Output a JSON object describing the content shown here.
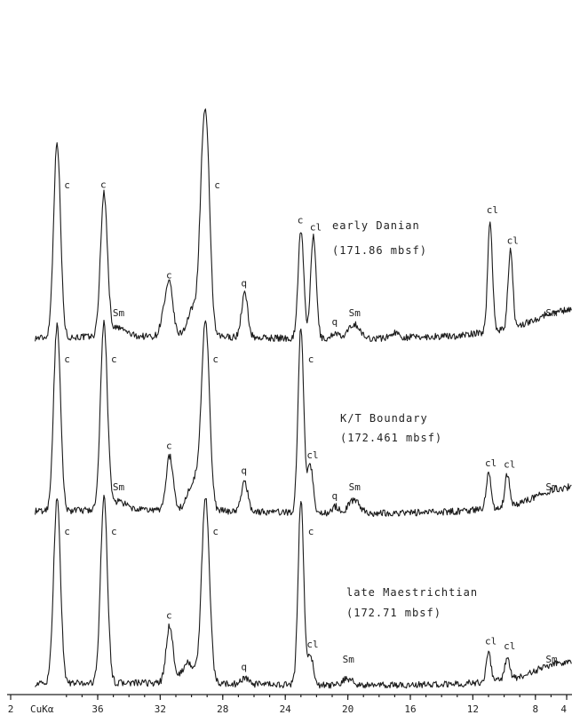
{
  "chart_data": {
    "type": "line",
    "title": "",
    "xlabel": "",
    "ylabel": "",
    "x_axis": {
      "range_deg_2theta": [
        40,
        2
      ],
      "reversed": true,
      "radiation_label": "CuKα",
      "ticks": [
        {
          "value": 2,
          "label": "2"
        },
        {
          "value": 36,
          "label": "36"
        },
        {
          "value": 32,
          "label": "32"
        },
        {
          "value": 28,
          "label": "28"
        },
        {
          "value": 24,
          "label": "24"
        },
        {
          "value": 20,
          "label": "20"
        },
        {
          "value": 16,
          "label": "16"
        },
        {
          "value": 12,
          "label": "12"
        },
        {
          "value": 8,
          "label": "8"
        },
        {
          "value": 4,
          "label": "4"
        }
      ]
    },
    "series": [
      {
        "name": "early Danian",
        "depth": "(171.86 mbsf)",
        "baseline": 0.1,
        "background": [
          [
            40,
            0.04
          ],
          [
            36,
            0.08
          ],
          [
            30,
            0.1
          ],
          [
            26,
            0.05
          ],
          [
            20,
            0.0
          ],
          [
            17,
            0.05
          ],
          [
            13,
            0.1
          ],
          [
            10,
            0.28
          ],
          [
            8,
            0.45
          ],
          [
            6,
            0.72
          ],
          [
            4.3,
            1.25
          ],
          [
            3.0,
            1.9
          ]
        ],
        "peaks": [
          {
            "x": 38.6,
            "h": 5.8,
            "w": 0.22,
            "label": "c"
          },
          {
            "x": 35.6,
            "h": 4.2,
            "w": 0.22,
            "label": "c"
          },
          {
            "x": 34.7,
            "h": 0.25,
            "w": 0.5,
            "label": "Sm"
          },
          {
            "x": 31.8,
            "h": 0.55,
            "w": 0.2
          },
          {
            "x": 31.4,
            "h": 1.5,
            "w": 0.22,
            "label": "c"
          },
          {
            "x": 29.8,
            "h": 0.9,
            "w": 0.4
          },
          {
            "x": 29.3,
            "h": 3.5,
            "w": 0.2
          },
          {
            "x": 29.0,
            "h": 4.8,
            "w": 0.22,
            "label": "c"
          },
          {
            "x": 26.6,
            "h": 1.3,
            "w": 0.2,
            "label": "q"
          },
          {
            "x": 23.0,
            "h": 3.2,
            "w": 0.18,
            "label": "c"
          },
          {
            "x": 22.2,
            "h": 3.0,
            "w": 0.18,
            "label": "cl"
          },
          {
            "x": 20.8,
            "h": 0.2,
            "w": 0.2,
            "label": "q"
          },
          {
            "x": 19.6,
            "h": 0.45,
            "w": 0.35,
            "label": "Sm"
          },
          {
            "x": 17.0,
            "h": 0.15,
            "w": 0.25
          },
          {
            "x": 10.9,
            "h": 3.3,
            "w": 0.15,
            "label": "cl"
          },
          {
            "x": 9.6,
            "h": 2.3,
            "w": 0.15,
            "label": "cl"
          },
          {
            "x": 7.0,
            "h": 0.2,
            "w": 1.2,
            "label": "Sm"
          }
        ]
      },
      {
        "name": "K/T Boundary",
        "depth": "(172.461 mbsf)",
        "baseline": 0.1,
        "background": [
          [
            40,
            0.06
          ],
          [
            36,
            0.1
          ],
          [
            30,
            0.1
          ],
          [
            26,
            0.05
          ],
          [
            20,
            0.0
          ],
          [
            16,
            0.02
          ],
          [
            13,
            0.06
          ],
          [
            10,
            0.18
          ],
          [
            8,
            0.35
          ],
          [
            6,
            0.62
          ],
          [
            4.3,
            1.15
          ],
          [
            3.0,
            1.75
          ]
        ],
        "peaks": [
          {
            "x": 38.6,
            "h": 5.5,
            "w": 0.22,
            "label": "c"
          },
          {
            "x": 35.6,
            "h": 5.5,
            "w": 0.22,
            "label": "c"
          },
          {
            "x": 34.7,
            "h": 0.25,
            "w": 0.5,
            "label": "Sm"
          },
          {
            "x": 31.4,
            "h": 1.6,
            "w": 0.22,
            "label": "c"
          },
          {
            "x": 29.8,
            "h": 0.9,
            "w": 0.4
          },
          {
            "x": 29.1,
            "h": 5.5,
            "w": 0.25,
            "label": "c"
          },
          {
            "x": 26.6,
            "h": 0.9,
            "w": 0.2,
            "label": "q"
          },
          {
            "x": 23.0,
            "h": 5.5,
            "w": 0.18,
            "label": "c"
          },
          {
            "x": 22.4,
            "h": 1.4,
            "w": 0.18,
            "label": "cl"
          },
          {
            "x": 20.8,
            "h": 0.2,
            "w": 0.2,
            "label": "q"
          },
          {
            "x": 19.6,
            "h": 0.4,
            "w": 0.35,
            "label": "Sm"
          },
          {
            "x": 11.0,
            "h": 1.05,
            "w": 0.15,
            "label": "cl"
          },
          {
            "x": 9.8,
            "h": 0.95,
            "w": 0.15,
            "label": "cl"
          },
          {
            "x": 7.0,
            "h": 0.2,
            "w": 1.2,
            "label": "Sm"
          }
        ]
      },
      {
        "name": "late Maestrichtian",
        "depth": "(172.71 mbsf)",
        "baseline": 0.1,
        "background": [
          [
            40,
            0.06
          ],
          [
            36,
            0.08
          ],
          [
            30,
            0.08
          ],
          [
            26,
            0.04
          ],
          [
            20,
            0.0
          ],
          [
            16,
            0.02
          ],
          [
            13,
            0.05
          ],
          [
            10,
            0.15
          ],
          [
            8,
            0.3
          ],
          [
            6,
            0.55
          ],
          [
            4.3,
            1.05
          ],
          [
            3.0,
            1.75
          ]
        ],
        "peaks": [
          {
            "x": 38.6,
            "h": 5.5,
            "w": 0.22,
            "label": "c"
          },
          {
            "x": 35.6,
            "h": 5.5,
            "w": 0.22,
            "label": "c"
          },
          {
            "x": 31.4,
            "h": 1.7,
            "w": 0.22,
            "label": "c"
          },
          {
            "x": 30.2,
            "h": 0.6,
            "w": 0.4
          },
          {
            "x": 29.1,
            "h": 5.5,
            "w": 0.25,
            "label": "c"
          },
          {
            "x": 26.6,
            "h": 0.2,
            "w": 0.2,
            "label": "q"
          },
          {
            "x": 23.0,
            "h": 5.5,
            "w": 0.18,
            "label": "c"
          },
          {
            "x": 22.4,
            "h": 0.9,
            "w": 0.18,
            "label": "cl"
          },
          {
            "x": 20.0,
            "h": 0.2,
            "w": 0.35,
            "label": "Sm"
          },
          {
            "x": 11.0,
            "h": 0.9,
            "w": 0.15,
            "label": "cl"
          },
          {
            "x": 9.8,
            "h": 0.7,
            "w": 0.15,
            "label": "cl"
          },
          {
            "x": 7.0,
            "h": 0.2,
            "w": 1.2,
            "label": "Sm"
          }
        ]
      }
    ],
    "grid": false,
    "legend": "none"
  }
}
